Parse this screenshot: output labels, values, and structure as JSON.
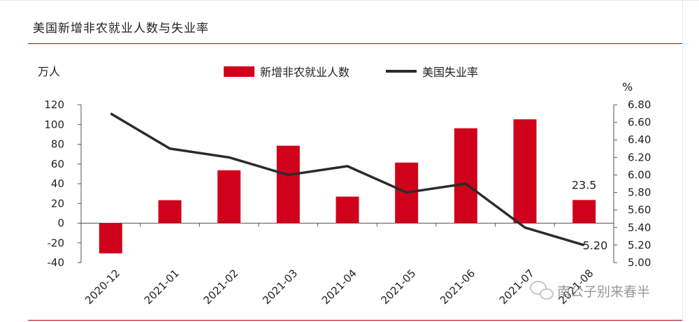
{
  "header": {
    "title": "美国新增非农就业人数与失业率",
    "watermark": "南公子别来春半",
    "watermark_icon": "wechat-icon"
  },
  "chart_data": {
    "type": "bar+line",
    "categories": [
      "2020-12",
      "2021-01",
      "2021-02",
      "2021-03",
      "2021-04",
      "2021-05",
      "2021-06",
      "2021-07",
      "2021-08"
    ],
    "series": [
      {
        "name": "新增非农就业人数",
        "type": "bar",
        "axis": "left",
        "color": "#d0021b",
        "values": [
          -30.6,
          23.3,
          53.6,
          78.5,
          26.9,
          61.4,
          96.2,
          105.3,
          23.5
        ]
      },
      {
        "name": "美国失业率",
        "type": "line",
        "axis": "right",
        "color": "#2b2b2b",
        "values": [
          6.7,
          6.3,
          6.2,
          6.0,
          6.1,
          5.8,
          5.9,
          5.4,
          5.2
        ]
      }
    ],
    "left_axis": {
      "unit": "万人",
      "ylim": [
        -40,
        120
      ],
      "ticks": [
        -40,
        -20,
        0,
        20,
        40,
        60,
        80,
        100,
        120
      ]
    },
    "right_axis": {
      "unit": "%",
      "ylim": [
        5.0,
        6.8
      ],
      "ticks": [
        "5.00",
        "5.20",
        "5.40",
        "5.60",
        "5.80",
        "6.00",
        "6.20",
        "6.40",
        "6.60",
        "6.80"
      ]
    },
    "annotations": [
      {
        "series": "新增非农就业人数",
        "index": 8,
        "text": "23.5"
      },
      {
        "series": "美国失业率",
        "index": 8,
        "text": "5.20"
      }
    ],
    "legend_position": "top-center",
    "grid": false
  }
}
